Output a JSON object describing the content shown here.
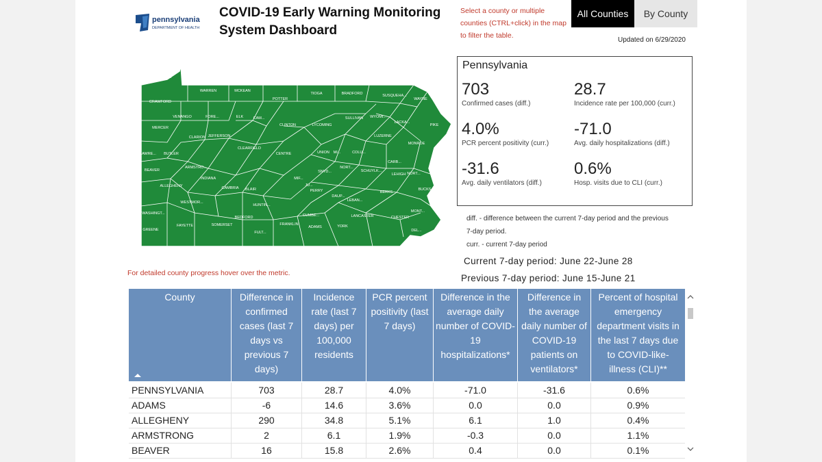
{
  "header": {
    "logo_brand": "pennsylvania",
    "logo_dept": "DEPARTMENT OF HEALTH",
    "title_line1": "COVID-19 Early Warning Monitoring",
    "title_line2": "System Dashboard",
    "hint": "Select a county or multiple counties (CTRL+click) in the map to filter the table.",
    "tabs": [
      "All Counties",
      "By County"
    ],
    "updated": "Updated on 6/29/2020"
  },
  "colors": {
    "map_fill": "#208a3a",
    "header_blue": "#6a8fbc",
    "hint_red": "#c0392b"
  },
  "map": {
    "counties": [
      "ERIE",
      "WARREN",
      "MCKEAN",
      "POTTER",
      "TIOGA",
      "BRADFORD",
      "SUSQUEHA...",
      "WAYNE",
      "CRAWFORD",
      "VENANGO",
      "FORE...",
      "ELK",
      "CAM...",
      "CLINTON",
      "LYCOMING",
      "SULLIVAN",
      "WYOMI...",
      "LACKA...",
      "PIKE",
      "MERCER",
      "CLARION",
      "JEFFERSON",
      "LUZERNE",
      "MONROE",
      "LAWRE...",
      "BUTLER",
      "CLEARFIELD",
      "CENTRE",
      "UNION",
      "MI...",
      "COLU...",
      "CARB...",
      "BEAVER",
      "ARMSTRO...",
      "SNYD...",
      "NORT...",
      "SCHUYLK...",
      "LEHIGH",
      "NORT...",
      "INDIANA",
      "MIF...",
      "JU...",
      "ALLEGHENY",
      "CAMBRIA",
      "BLAIR",
      "PERRY",
      "DAUP...",
      "BERKS",
      "BUCKS",
      "WESTMOR...",
      "HUNTIN...",
      "LEBAN...",
      "WASHINGT...",
      "SOMERSET",
      "BEDFORD",
      "CUMBE...",
      "LANCASTER",
      "CHESTER",
      "MONT...",
      "GREENE",
      "FAYETTE",
      "FULT...",
      "FRANKLIN",
      "ADAMS",
      "YORK",
      "DEL..."
    ]
  },
  "summary": {
    "state": "Pennsylvania",
    "metrics": [
      {
        "value": "703",
        "label": "Confirmed cases (diff.)"
      },
      {
        "value": "28.7",
        "label": "Incidence rate per 100,000 (curr.)"
      },
      {
        "value": "4.0%",
        "label": "PCR percent positivity (curr.)"
      },
      {
        "value": "-71.0",
        "label": "Avg. daily hospitalizations (diff.)"
      },
      {
        "value": "-31.6",
        "label": "Avg. daily ventilators (diff.)"
      },
      {
        "value": "0.6%",
        "label": "Hosp. visits due to CLI (curr.)"
      }
    ]
  },
  "notes": {
    "diff_line1": "diff. - difference between the current 7-day period and the previous",
    "diff_line2": "7-day period.",
    "curr": "curr. - current 7-day period",
    "current_period": "Current 7-day period: June 22-June 28",
    "previous_period": "Previous 7-day period: June 15-June 21"
  },
  "detail_hint": "For detailed county progress hover over the metric.",
  "table": {
    "columns": [
      "County",
      "Difference in confirmed cases (last 7 days vs previous 7 days)",
      "Incidence rate (last 7 days) per 100,000 residents",
      "PCR percent positivity (last 7 days)",
      "Difference in the average daily number of COVID-19 hospitalizations*",
      "Difference in the average daily number of COVID-19 patients on ventilators*",
      "Percent of hospital emergency department visits in the last 7 days due to COVID-like-illness (CLI)**"
    ],
    "rows": [
      [
        "PENNSYLVANIA",
        "703",
        "28.7",
        "4.0%",
        "-71.0",
        "-31.6",
        "0.6%"
      ],
      [
        "ADAMS",
        "-6",
        "14.6",
        "3.6%",
        "0.0",
        "0.0",
        "0.9%"
      ],
      [
        "ALLEGHENY",
        "290",
        "34.8",
        "5.1%",
        "6.1",
        "1.0",
        "0.4%"
      ],
      [
        "ARMSTRONG",
        "2",
        "6.1",
        "1.9%",
        "-0.3",
        "0.0",
        "1.1%"
      ],
      [
        "BEAVER",
        "16",
        "15.8",
        "2.6%",
        "0.4",
        "0.0",
        "0.1%"
      ]
    ]
  }
}
